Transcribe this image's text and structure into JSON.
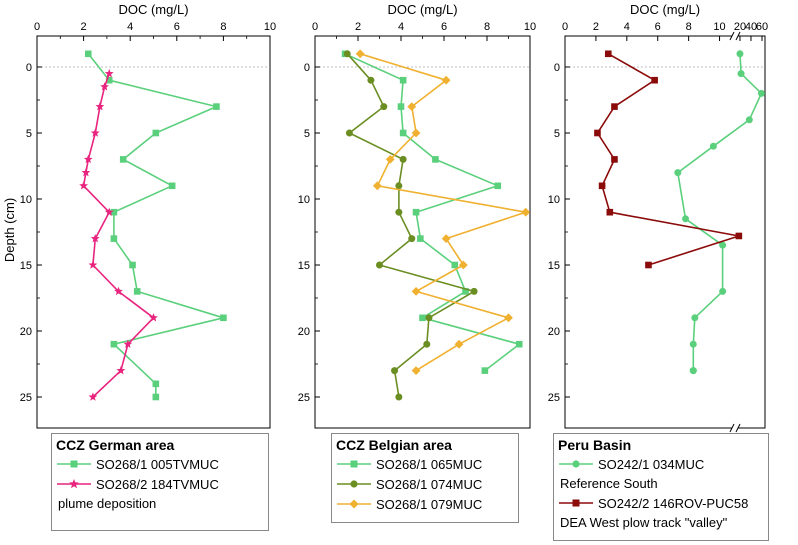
{
  "y_axis_label": "Depth (cm)",
  "colors": {
    "green": "#5bd07c",
    "magenta": "#e8247f",
    "olive": "#6b8e23",
    "orange": "#f0b030",
    "darkred": "#8b0a0a"
  },
  "chart_data": [
    {
      "type": "line",
      "xlabel": "DOC (mg/L)",
      "xlim": [
        0,
        10
      ],
      "xticks": [
        "0",
        "2",
        "4",
        "6",
        "8",
        "10"
      ],
      "ylim": [
        -2,
        27.5
      ],
      "yticks": [
        "0",
        "5",
        "10",
        "15",
        "20",
        "25"
      ],
      "legend_title": "CCZ German area",
      "series": [
        {
          "name": "SO268/1 005TVMUC",
          "color": "#5bd07c",
          "marker": "square",
          "x": [
            2.2,
            3.1,
            7.7,
            5.1,
            3.7,
            5.8,
            3.3,
            3.3,
            4.1,
            4.3,
            8.0,
            3.3,
            5.1,
            5.1
          ],
          "y": [
            -1,
            1,
            3,
            5,
            7,
            9,
            11,
            13,
            15,
            17,
            19,
            21,
            24,
            25
          ]
        },
        {
          "name": "SO268/2 184TVMUC",
          "color": "#e8247f",
          "marker": "star",
          "note": "plume deposition",
          "x": [
            3.1,
            2.9,
            2.7,
            2.5,
            2.2,
            2.1,
            2.0,
            3.1,
            2.5,
            2.4,
            3.5,
            5.0,
            3.9,
            3.6,
            2.4
          ],
          "y": [
            0.5,
            1.5,
            3,
            5,
            7,
            8,
            9,
            11,
            13,
            15,
            17,
            19,
            21,
            23,
            25
          ]
        }
      ]
    },
    {
      "type": "line",
      "xlabel": "DOC (mg/L)",
      "xlim": [
        0,
        10
      ],
      "xticks": [
        "0",
        "2",
        "4",
        "6",
        "8",
        "10"
      ],
      "ylim": [
        -2,
        27.5
      ],
      "yticks": [
        "0",
        "5",
        "10",
        "15",
        "20",
        "25"
      ],
      "legend_title": "CCZ Belgian area",
      "series": [
        {
          "name": "SO268/1 065MUC",
          "color": "#5bd07c",
          "marker": "square",
          "x": [
            1.4,
            4.1,
            4.0,
            4.1,
            5.6,
            8.5,
            4.7,
            4.9,
            6.5,
            7.0,
            5.0,
            9.5,
            7.9
          ],
          "y": [
            -1,
            1,
            3,
            5,
            7,
            9,
            11,
            13,
            15,
            17,
            19,
            21,
            23
          ]
        },
        {
          "name": "SO268/1 074MUC",
          "color": "#6b8e23",
          "marker": "circle",
          "x": [
            1.5,
            2.6,
            3.2,
            1.6,
            4.1,
            3.9,
            3.9,
            4.5,
            3.0,
            7.4,
            5.3,
            5.2,
            3.7,
            3.9
          ],
          "y": [
            -1,
            1,
            3,
            5,
            7,
            9,
            11,
            13,
            15,
            17,
            19,
            21,
            23,
            25
          ]
        },
        {
          "name": "SO268/1 079MUC",
          "color": "#f0b030",
          "marker": "diamond",
          "x": [
            2.1,
            6.1,
            4.5,
            4.7,
            3.5,
            2.9,
            9.8,
            6.1,
            6.9,
            4.7,
            9.0,
            6.7,
            4.7
          ],
          "y": [
            -1,
            1,
            3,
            5,
            7,
            9,
            11,
            13,
            15,
            17,
            19,
            21,
            23
          ]
        }
      ]
    },
    {
      "type": "line",
      "xlabel": "DOC (mg/L)",
      "xlim": [
        0,
        60
      ],
      "x_axis_break": 11,
      "xticks": [
        "0",
        "2",
        "4",
        "6",
        "8",
        "10",
        "20",
        "40",
        "60"
      ],
      "ylim": [
        -2,
        27.5
      ],
      "yticks": [
        "0",
        "5",
        "10",
        "15",
        "20",
        "25"
      ],
      "legend_title": "Peru Basin",
      "series": [
        {
          "name": "SO242/1 034MUC",
          "color": "#5bd07c",
          "marker": "circle",
          "note": "Reference South",
          "x": [
            20,
            22,
            59,
            37,
            9.6,
            7.3,
            7.8,
            10.2,
            10.2,
            8.4,
            8.3,
            8.3,
            8.3
          ],
          "y": [
            -1,
            0.5,
            2,
            4,
            6,
            8,
            11.5,
            13.5,
            17,
            19,
            21,
            23,
            23
          ]
        },
        {
          "name": "SO242/2 146ROV-PUC58",
          "color": "#8b0a0a",
          "marker": "square",
          "note": "DEA West plow track \"valley\"",
          "x": [
            2.8,
            5.8,
            3.2,
            2.1,
            3.2,
            2.4,
            2.9,
            18,
            5.4
          ],
          "y": [
            -1,
            1,
            3,
            5,
            7,
            9,
            11,
            12.8,
            15
          ]
        }
      ]
    }
  ]
}
